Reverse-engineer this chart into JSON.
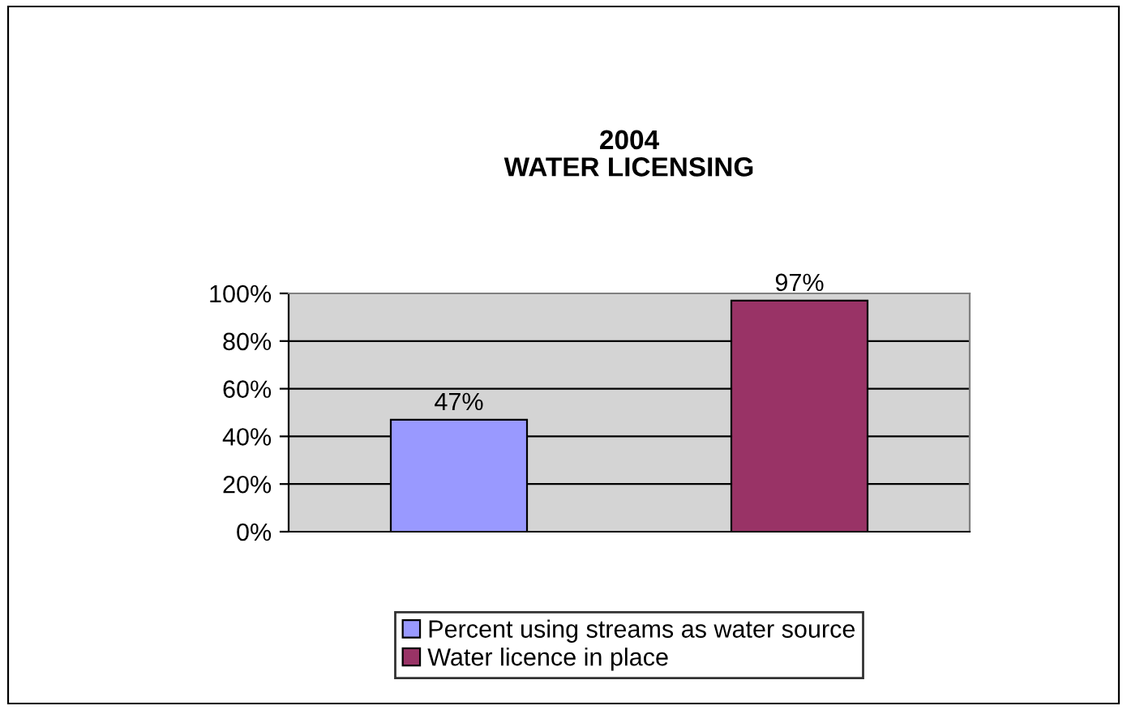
{
  "chart_data": {
    "type": "bar",
    "title": "2004\nWATER LICENSING",
    "categories": [
      null
    ],
    "series": [
      {
        "name": "Percent using streams as water source",
        "color": "#9999ff",
        "values": [
          47
        ],
        "value_labels": [
          "47%"
        ]
      },
      {
        "name": "Water licence in place",
        "color": "#993366",
        "values": [
          97
        ],
        "value_labels": [
          "97%"
        ]
      }
    ],
    "ylim": [
      0,
      100
    ],
    "yticks": [
      {
        "value": 0,
        "label": "0%"
      },
      {
        "value": 20,
        "label": "20%"
      },
      {
        "value": 40,
        "label": "40%"
      },
      {
        "value": 60,
        "label": "60%"
      },
      {
        "value": 80,
        "label": "80%"
      },
      {
        "value": 100,
        "label": "100%"
      }
    ],
    "grid": "y",
    "legend": "bottom"
  }
}
